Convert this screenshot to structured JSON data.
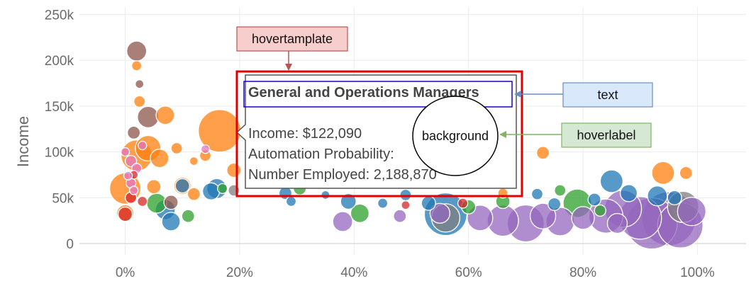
{
  "chart_data": {
    "type": "scatter",
    "title": "",
    "xlabel": "",
    "ylabel": "Income",
    "xlim": [
      -0.08,
      1.085
    ],
    "ylim": [
      -20000,
      258000
    ],
    "x_ticks": [
      {
        "value": 0.0,
        "label": "0%"
      },
      {
        "value": 0.2,
        "label": "20%"
      },
      {
        "value": 0.4,
        "label": "40%"
      },
      {
        "value": 0.6,
        "label": "60%"
      },
      {
        "value": 0.8,
        "label": "80%"
      },
      {
        "value": 1.0,
        "label": "100%"
      }
    ],
    "y_ticks": [
      {
        "value": 0,
        "label": "0"
      },
      {
        "value": 50000,
        "label": "50k"
      },
      {
        "value": 100000,
        "label": "100k"
      },
      {
        "value": 150000,
        "label": "150k"
      },
      {
        "value": 200000,
        "label": "200k"
      },
      {
        "value": 250000,
        "label": "250k"
      }
    ],
    "grid": true,
    "marker_opacity": 0.75,
    "series": [
      {
        "color": "#1f77b4",
        "points": [
          {
            "x": 0.07,
            "y": 37000,
            "r": 14
          },
          {
            "x": 0.08,
            "y": 24000,
            "r": 13
          },
          {
            "x": 0.1,
            "y": 63000,
            "r": 10
          },
          {
            "x": 0.15,
            "y": 57000,
            "r": 12
          },
          {
            "x": 0.16,
            "y": 60000,
            "r": 14
          },
          {
            "x": 0.28,
            "y": 55000,
            "r": 9
          },
          {
            "x": 0.29,
            "y": 46000,
            "r": 7
          },
          {
            "x": 0.35,
            "y": 53000,
            "r": 6
          },
          {
            "x": 0.39,
            "y": 46000,
            "r": 11
          },
          {
            "x": 0.45,
            "y": 44000,
            "r": 7
          },
          {
            "x": 0.49,
            "y": 53000,
            "r": 8
          },
          {
            "x": 0.53,
            "y": 44000,
            "r": 10
          },
          {
            "x": 0.56,
            "y": 32000,
            "r": 30
          },
          {
            "x": 0.72,
            "y": 54000,
            "r": 8
          },
          {
            "x": 0.75,
            "y": 43000,
            "r": 9
          },
          {
            "x": 0.82,
            "y": 48000,
            "r": 9
          },
          {
            "x": 0.85,
            "y": 68000,
            "r": 16
          },
          {
            "x": 0.88,
            "y": 55000,
            "r": 12
          },
          {
            "x": 0.93,
            "y": 52000,
            "r": 14
          },
          {
            "x": 0.96,
            "y": 50000,
            "r": 10
          }
        ]
      },
      {
        "color": "#ff7f0e",
        "points": [
          {
            "x": 0.0,
            "y": 60000,
            "r": 22
          },
          {
            "x": 0.02,
            "y": 96000,
            "r": 22
          },
          {
            "x": 0.04,
            "y": 104000,
            "r": 18
          },
          {
            "x": 0.06,
            "y": 93000,
            "r": 13
          },
          {
            "x": 0.07,
            "y": 140000,
            "r": 13
          },
          {
            "x": 0.0,
            "y": 33000,
            "r": 12
          },
          {
            "x": 0.02,
            "y": 194000,
            "r": 7
          },
          {
            "x": 0.05,
            "y": 62000,
            "r": 10
          },
          {
            "x": 0.1,
            "y": 63000,
            "r": 12
          },
          {
            "x": 0.12,
            "y": 54000,
            "r": 9
          },
          {
            "x": 0.14,
            "y": 96000,
            "r": 8
          },
          {
            "x": 0.165,
            "y": 123000,
            "r": 30
          },
          {
            "x": 0.19,
            "y": 80000,
            "r": 10
          },
          {
            "x": 0.12,
            "y": 90000,
            "r": 6
          },
          {
            "x": 0.09,
            "y": 104000,
            "r": 8
          },
          {
            "x": 0.025,
            "y": 155000,
            "r": 8
          },
          {
            "x": 0.73,
            "y": 99000,
            "r": 9
          },
          {
            "x": 0.94,
            "y": 77000,
            "r": 16
          },
          {
            "x": 0.98,
            "y": 77000,
            "r": 9
          },
          {
            "x": 0.66,
            "y": 55000,
            "r": 7
          }
        ]
      },
      {
        "color": "#2ca02c",
        "points": [
          {
            "x": 0.055,
            "y": 44000,
            "r": 14
          },
          {
            "x": 0.11,
            "y": 30000,
            "r": 9
          },
          {
            "x": 0.305,
            "y": 60000,
            "r": 9
          },
          {
            "x": 0.41,
            "y": 33000,
            "r": 13
          },
          {
            "x": 0.6,
            "y": 40000,
            "r": 10
          },
          {
            "x": 0.66,
            "y": 46000,
            "r": 10
          },
          {
            "x": 0.79,
            "y": 44000,
            "r": 20
          },
          {
            "x": 0.76,
            "y": 58000,
            "r": 8
          },
          {
            "x": 0.83,
            "y": 36000,
            "r": 8
          },
          {
            "x": 0.17,
            "y": 60000,
            "r": 7
          }
        ]
      },
      {
        "color": "#d62728",
        "points": [
          {
            "x": 0.0,
            "y": 32000,
            "r": 10
          },
          {
            "x": 0.01,
            "y": 50000,
            "r": 8
          },
          {
            "x": 0.03,
            "y": 46000,
            "r": 7
          },
          {
            "x": 0.015,
            "y": 75000,
            "r": 6
          },
          {
            "x": 0.59,
            "y": 44000,
            "r": 7
          },
          {
            "x": 0.49,
            "y": 42000,
            "r": 6
          }
        ]
      },
      {
        "color": "#9467bd",
        "points": [
          {
            "x": 0.38,
            "y": 24000,
            "r": 14
          },
          {
            "x": 0.55,
            "y": 33000,
            "r": 14
          },
          {
            "x": 0.62,
            "y": 28000,
            "r": 18
          },
          {
            "x": 0.66,
            "y": 25000,
            "r": 22
          },
          {
            "x": 0.7,
            "y": 22000,
            "r": 26
          },
          {
            "x": 0.73,
            "y": 30000,
            "r": 18
          },
          {
            "x": 0.76,
            "y": 24000,
            "r": 20
          },
          {
            "x": 0.8,
            "y": 28000,
            "r": 16
          },
          {
            "x": 0.84,
            "y": 30000,
            "r": 24
          },
          {
            "x": 0.87,
            "y": 38000,
            "r": 26
          },
          {
            "x": 0.9,
            "y": 28000,
            "r": 30
          },
          {
            "x": 0.92,
            "y": 22000,
            "r": 36
          },
          {
            "x": 0.95,
            "y": 27000,
            "r": 38
          },
          {
            "x": 0.97,
            "y": 20000,
            "r": 32
          },
          {
            "x": 0.99,
            "y": 35000,
            "r": 20
          },
          {
            "x": 0.86,
            "y": 22000,
            "r": 14
          },
          {
            "x": 0.48,
            "y": 30000,
            "r": 9
          }
        ]
      },
      {
        "color": "#8c564b",
        "points": [
          {
            "x": 0.02,
            "y": 210000,
            "r": 14
          },
          {
            "x": 0.04,
            "y": 138000,
            "r": 15
          },
          {
            "x": 0.015,
            "y": 121000,
            "r": 9
          },
          {
            "x": 0.025,
            "y": 174000,
            "r": 6
          },
          {
            "x": 0.08,
            "y": 45000,
            "r": 10
          }
        ]
      },
      {
        "color": "#e377c2",
        "points": [
          {
            "x": 0.01,
            "y": 90000,
            "r": 8
          },
          {
            "x": 0.02,
            "y": 82000,
            "r": 7
          },
          {
            "x": 0.005,
            "y": 74000,
            "r": 6
          },
          {
            "x": 0.01,
            "y": 66000,
            "r": 7
          },
          {
            "x": 0.015,
            "y": 58000,
            "r": 6
          },
          {
            "x": 0.03,
            "y": 107000,
            "r": 6
          },
          {
            "x": 0.14,
            "y": 103000,
            "r": 6
          },
          {
            "x": 0.0,
            "y": 100000,
            "r": 6
          }
        ]
      },
      {
        "color": "#7f7f7f",
        "points": [
          {
            "x": 0.56,
            "y": 28000,
            "r": 20
          },
          {
            "x": 0.975,
            "y": 40000,
            "r": 22
          },
          {
            "x": 0.19,
            "y": 58000,
            "r": 8
          }
        ]
      }
    ]
  },
  "hover": {
    "title": "General and Operations Managers",
    "lines": [
      "Income: $122,090",
      "Automation Probability:",
      "Number Employed: 2,188,870"
    ]
  },
  "annotations": {
    "hovertemplate": "hovertamplate",
    "text": "text",
    "background": "background",
    "hoverlabel": "hoverlabel"
  },
  "colors": {
    "hovertemplate_fill": "#f8cecc",
    "hovertemplate_stroke": "#b85450",
    "text_fill": "#dae8fc",
    "text_stroke": "#6c8ebf",
    "hoverlabel_fill": "#d5e8d4",
    "hoverlabel_stroke": "#82b366",
    "highlight_box": "#e00000",
    "title_box": "#1a00cc"
  }
}
